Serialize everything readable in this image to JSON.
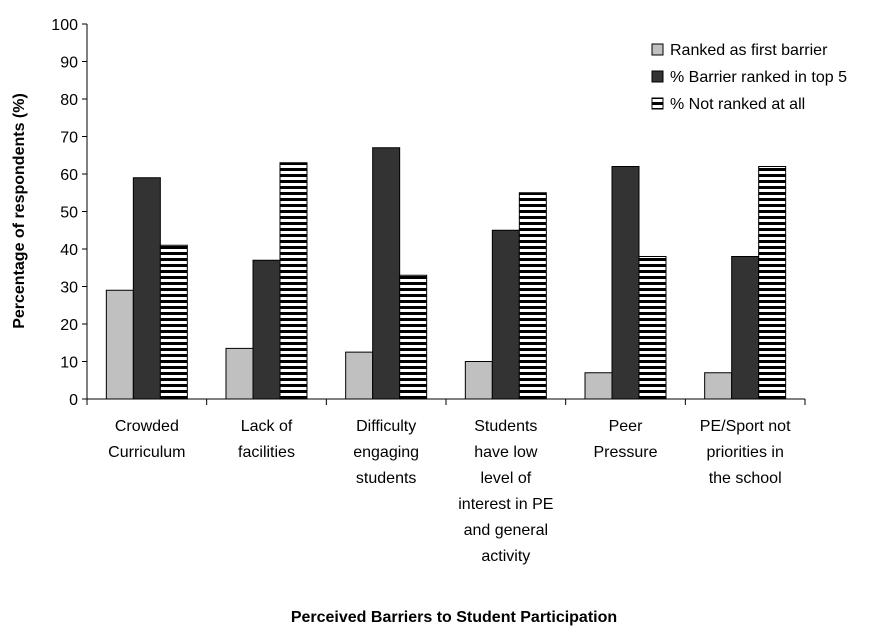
{
  "chart_data": {
    "type": "bar",
    "title": "",
    "xlabel": "Perceived Barriers to Student Participation",
    "ylabel": "Percentage of respondents (%)",
    "ylim": [
      0,
      100
    ],
    "yticks": [
      0,
      10,
      20,
      30,
      40,
      50,
      60,
      70,
      80,
      90,
      100
    ],
    "grid": false,
    "legend_position": "top-right",
    "categories": [
      [
        "Crowded",
        "Curriculum"
      ],
      [
        "Lack of",
        "facilities"
      ],
      [
        "Difficulty",
        "engaging",
        "students"
      ],
      [
        "Students",
        "have low",
        "level of",
        "interest in PE",
        "and general",
        "activity"
      ],
      [
        "Peer",
        "Pressure"
      ],
      [
        "PE/Sport not",
        "priorities in",
        "the school"
      ]
    ],
    "series": [
      {
        "name": "Ranked as first barrier",
        "color": "#c0c0c0",
        "pattern": "solid",
        "values": [
          29,
          13.5,
          12.5,
          10,
          7,
          7
        ]
      },
      {
        "name": "% Barrier ranked in top 5",
        "color": "#333333",
        "pattern": "solid",
        "values": [
          59,
          37,
          67,
          45,
          62,
          38
        ]
      },
      {
        "name": "% Not ranked at all",
        "color": "#ffffff",
        "pattern": "horizontal-stripes",
        "values": [
          41,
          63,
          33,
          55,
          38,
          62
        ]
      }
    ]
  }
}
